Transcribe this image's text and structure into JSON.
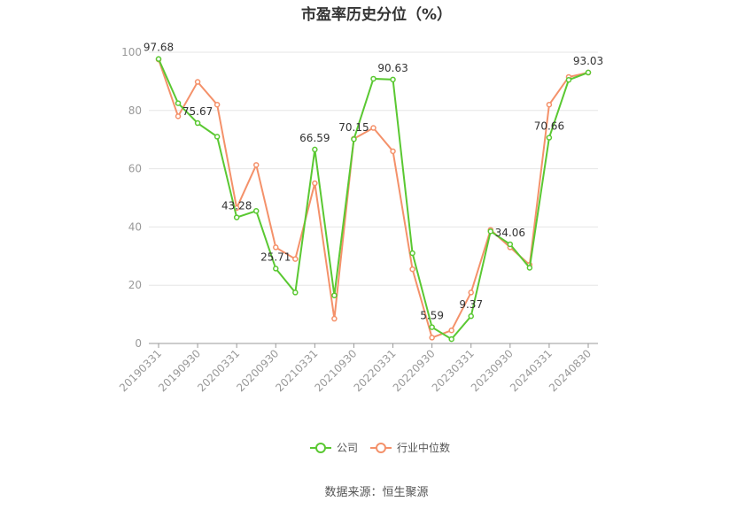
{
  "chart_data": {
    "type": "line",
    "title": "市盈率历史分位（%）",
    "xlabel": "",
    "ylabel": "",
    "ylim": [
      0,
      100
    ],
    "y_ticks": [
      0,
      20,
      40,
      60,
      80,
      100
    ],
    "grid": true,
    "legend_position": "bottom",
    "x_tick_labels": [
      "20190331",
      "20190930",
      "20200331",
      "20200930",
      "20210331",
      "20210930",
      "20220331",
      "20220930",
      "20230331",
      "20230930",
      "20240331",
      "20240830"
    ],
    "x": [
      "20190331",
      "20190630",
      "20190930",
      "20191231",
      "20200331",
      "20200630",
      "20200930",
      "20201231",
      "20210331",
      "20210630",
      "20210930",
      "20211231",
      "20220331",
      "20220630",
      "20220930",
      "20221231",
      "20230331",
      "20230630",
      "20230930",
      "20231231",
      "20240331",
      "20240630",
      "20240830"
    ],
    "series": [
      {
        "name": "公司",
        "color": "#5ac832",
        "values": [
          97.68,
          82.5,
          75.67,
          71.0,
          43.28,
          45.5,
          25.71,
          17.5,
          66.59,
          16.5,
          70.15,
          90.9,
          90.63,
          31.0,
          5.59,
          1.5,
          9.37,
          38.5,
          34.06,
          26.0,
          70.66,
          90.5,
          93.03
        ]
      },
      {
        "name": "行业中位数",
        "color": "#f4916a",
        "values": [
          97.5,
          78.0,
          89.8,
          82.0,
          46.5,
          61.3,
          33.0,
          29.0,
          55.0,
          8.5,
          70.3,
          74.0,
          66.0,
          25.5,
          2.0,
          4.5,
          17.5,
          39.0,
          33.0,
          27.0,
          82.0,
          91.5,
          93.0
        ]
      }
    ],
    "data_labels": [
      {
        "index": 0,
        "value": "97.68"
      },
      {
        "index": 2,
        "value": "75.67"
      },
      {
        "index": 4,
        "value": "43.28"
      },
      {
        "index": 6,
        "value": "25.71"
      },
      {
        "index": 8,
        "value": "66.59"
      },
      {
        "index": 10,
        "value": "70.15"
      },
      {
        "index": 12,
        "value": "90.63"
      },
      {
        "index": 14,
        "value": "5.59"
      },
      {
        "index": 16,
        "value": "9.37"
      },
      {
        "index": 18,
        "value": "34.06"
      },
      {
        "index": 20,
        "value": "70.66"
      },
      {
        "index": 22,
        "value": "93.03"
      }
    ]
  },
  "source": "数据来源：恒生聚源"
}
